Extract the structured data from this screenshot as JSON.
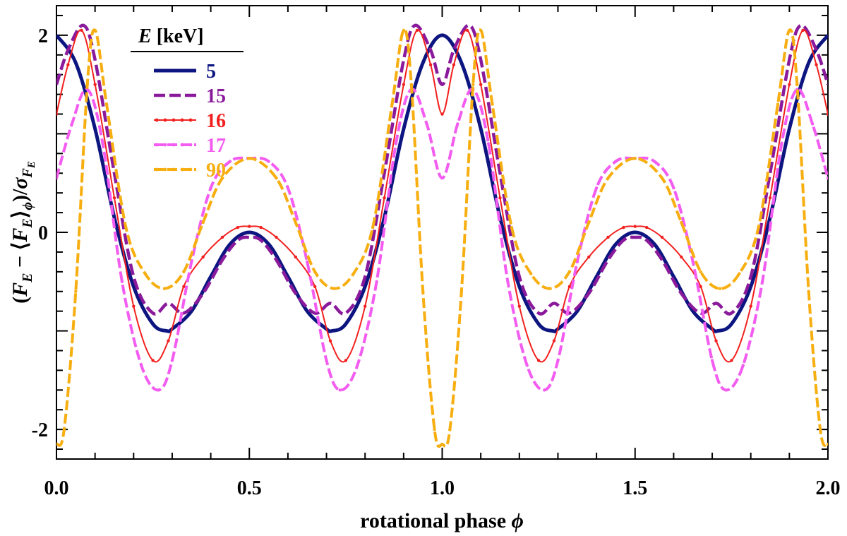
{
  "chart_data": {
    "type": "line",
    "xlabel": "rotational phase",
    "xlabel_symbol": "ϕ",
    "ylabel": "(F_E − ⟨F_E⟩_ϕ)/σ_F_E",
    "ylabel_parts": {
      "open": "(",
      "F": "F",
      "E": "E",
      "minus": " − ⟨",
      "F2": "F",
      "E2": "E",
      "close_angle": "⟩",
      "phi": "ϕ",
      "close": ")/",
      "sigma": "σ",
      "sub_F": "F",
      "sub_E": "E"
    },
    "xlim": [
      0,
      2
    ],
    "ylim": [
      -2.3,
      2.3
    ],
    "x_ticks": [
      "0.0",
      "0.5",
      "1.0",
      "1.5",
      "2.0"
    ],
    "y_ticks": [
      "2",
      "0",
      "-2"
    ],
    "grid": false,
    "legend": {
      "title_symbol": "E",
      "title_unit": "[keV]",
      "placement": "top-left"
    },
    "series": [
      {
        "name": "5",
        "color": "#0d1580",
        "style": "solid-thick",
        "x": [
          0.0,
          0.05,
          0.1,
          0.15,
          0.2,
          0.25,
          0.286,
          0.3,
          0.35,
          0.4,
          0.45,
          0.5,
          0.55,
          0.6,
          0.65,
          0.7,
          0.714,
          0.75,
          0.8,
          0.85,
          0.9,
          0.95,
          1.0
        ],
        "y": [
          2.0,
          1.72,
          1.05,
          0.15,
          -0.55,
          -0.93,
          -1.0,
          -0.98,
          -0.8,
          -0.45,
          -0.12,
          0.0,
          -0.12,
          -0.45,
          -0.8,
          -0.98,
          -1.0,
          -0.93,
          -0.55,
          0.15,
          1.05,
          1.72,
          2.0
        ]
      },
      {
        "name": "15",
        "color": "#8a1a9b",
        "style": "dashed",
        "x": [
          0.0,
          0.03,
          0.07,
          0.1,
          0.15,
          0.2,
          0.25,
          0.29,
          0.33,
          0.38,
          0.43,
          0.47,
          0.5,
          0.53,
          0.57,
          0.62,
          0.67,
          0.71,
          0.75,
          0.8,
          0.85,
          0.9,
          0.93,
          0.97,
          1.0
        ],
        "y": [
          1.5,
          1.85,
          2.1,
          1.75,
          0.6,
          -0.45,
          -0.82,
          -0.72,
          -0.82,
          -0.62,
          -0.28,
          -0.08,
          -0.05,
          -0.08,
          -0.28,
          -0.62,
          -0.82,
          -0.72,
          -0.82,
          -0.45,
          0.6,
          1.75,
          2.1,
          1.85,
          1.5
        ]
      },
      {
        "name": "16",
        "color": "#f2201e",
        "style": "solid-markers",
        "x": [
          0.0,
          0.03,
          0.065,
          0.1,
          0.15,
          0.2,
          0.25,
          0.29,
          0.33,
          0.38,
          0.43,
          0.47,
          0.5,
          0.53,
          0.57,
          0.62,
          0.67,
          0.71,
          0.75,
          0.8,
          0.85,
          0.9,
          0.935,
          0.97,
          1.0
        ],
        "y": [
          1.2,
          1.7,
          2.05,
          1.5,
          0.35,
          -0.75,
          -1.3,
          -1.1,
          -0.55,
          -0.25,
          -0.05,
          0.05,
          0.06,
          0.05,
          -0.05,
          -0.25,
          -0.55,
          -1.1,
          -1.3,
          -0.75,
          0.35,
          1.5,
          2.05,
          1.7,
          1.2
        ]
      },
      {
        "name": "17",
        "color": "#f35cf0",
        "style": "dashed-markers",
        "x": [
          0.0,
          0.04,
          0.08,
          0.12,
          0.17,
          0.22,
          0.265,
          0.3,
          0.35,
          0.4,
          0.45,
          0.5,
          0.55,
          0.6,
          0.65,
          0.7,
          0.735,
          0.78,
          0.83,
          0.88,
          0.92,
          0.96,
          1.0
        ],
        "y": [
          0.55,
          1.1,
          1.45,
          0.9,
          -0.5,
          -1.35,
          -1.6,
          -1.3,
          -0.3,
          0.45,
          0.72,
          0.75,
          0.72,
          0.45,
          -0.3,
          -1.3,
          -1.6,
          -1.35,
          -0.5,
          0.9,
          1.45,
          1.1,
          0.55
        ]
      },
      {
        "name": "90",
        "color": "#f7ae10",
        "style": "dashed-markers",
        "x": [
          0.0,
          0.02,
          0.05,
          0.08,
          0.1,
          0.13,
          0.18,
          0.23,
          0.28,
          0.33,
          0.38,
          0.43,
          0.5,
          0.57,
          0.62,
          0.67,
          0.72,
          0.77,
          0.82,
          0.87,
          0.9,
          0.92,
          0.95,
          0.98,
          1.0
        ],
        "y": [
          -2.15,
          -2.0,
          -0.6,
          1.5,
          2.05,
          1.3,
          0.05,
          -0.42,
          -0.57,
          -0.4,
          0.1,
          0.55,
          0.75,
          0.55,
          0.1,
          -0.4,
          -0.57,
          -0.42,
          0.05,
          1.3,
          2.05,
          1.5,
          -0.6,
          -2.0,
          -2.15
        ]
      }
    ]
  }
}
